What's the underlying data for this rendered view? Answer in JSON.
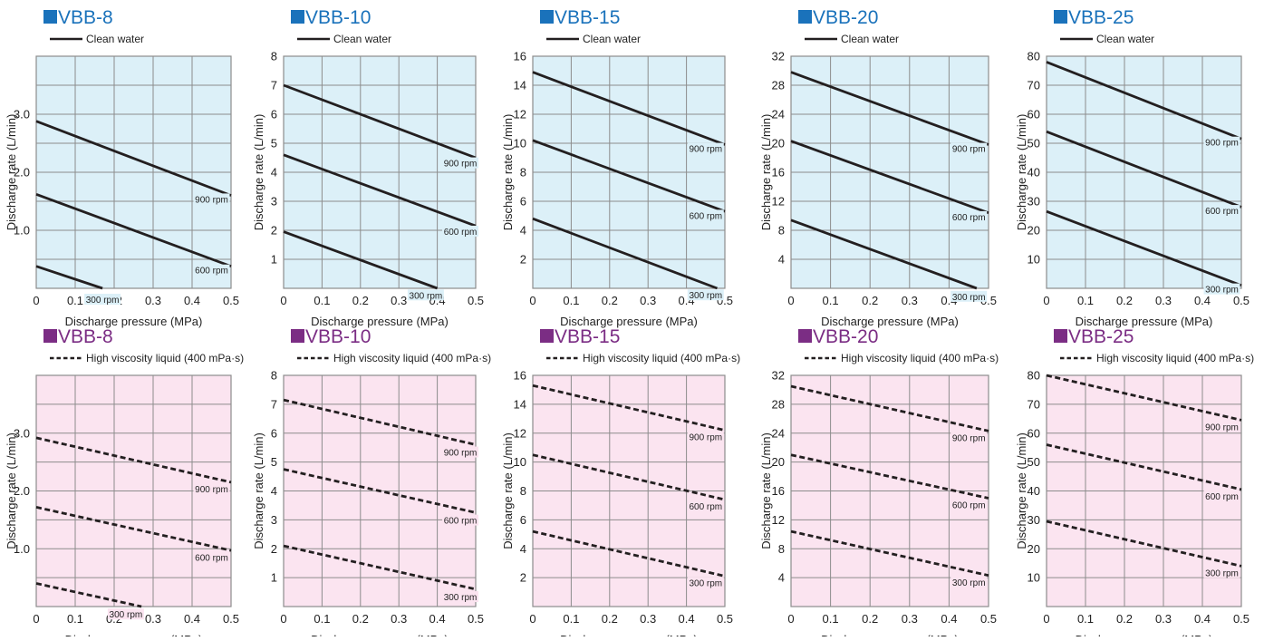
{
  "colors": {
    "water_bg": "#dcf0f8",
    "viscous_bg": "#fbe4f0",
    "water_title": "#1a72bb",
    "viscous_title": "#7b2d84",
    "grid": "#8c8c8c",
    "line": "#231f20"
  },
  "chart_data": [
    {
      "type": "line",
      "row": "water",
      "title": "VBB-8",
      "legend": "Clean water",
      "line_style": "solid",
      "xlabel": "Discharge pressure (MPa)",
      "ylabel": "Discharge rate (L/min)",
      "xlim": [
        0,
        0.5
      ],
      "ylim": [
        0,
        4
      ],
      "xticks": [
        "0",
        "0.1",
        "0.2",
        "0.3",
        "0.4",
        "0.5"
      ],
      "yticks": [
        {
          "v": 1,
          "t": "1.0"
        },
        {
          "v": 2,
          "t": "2.0"
        },
        {
          "v": 3,
          "t": "3.0"
        }
      ],
      "series": [
        {
          "name": "900 rpm",
          "x": [
            0,
            0.5
          ],
          "y": [
            2.88,
            1.6
          ],
          "label_x": 0.45
        },
        {
          "name": "600 rpm",
          "x": [
            0,
            0.5
          ],
          "y": [
            1.62,
            0.38
          ],
          "label_x": 0.45
        },
        {
          "name": "300 rpm",
          "x": [
            0,
            0.17
          ],
          "y": [
            0.38,
            0
          ],
          "label_x": 0.17
        }
      ]
    },
    {
      "type": "line",
      "row": "water",
      "title": "VBB-10",
      "legend": "Clean water",
      "line_style": "solid",
      "xlabel": "Discharge pressure (MPa)",
      "ylabel": "Discharge rate (L/min)",
      "xlim": [
        0,
        0.5
      ],
      "ylim": [
        0,
        8
      ],
      "xticks": [
        "0",
        "0.1",
        "0.2",
        "0.3",
        "0.4",
        "0.5"
      ],
      "yticks": [
        {
          "v": 1,
          "t": "1"
        },
        {
          "v": 2,
          "t": "2"
        },
        {
          "v": 3,
          "t": "3"
        },
        {
          "v": 4,
          "t": "4"
        },
        {
          "v": 5,
          "t": "5"
        },
        {
          "v": 6,
          "t": "6"
        },
        {
          "v": 7,
          "t": "7"
        },
        {
          "v": 8,
          "t": "8"
        }
      ],
      "series": [
        {
          "name": "900 rpm",
          "x": [
            0,
            0.5
          ],
          "y": [
            7.0,
            4.5
          ],
          "label_x": 0.46
        },
        {
          "name": "600 rpm",
          "x": [
            0,
            0.5
          ],
          "y": [
            4.6,
            2.15
          ],
          "label_x": 0.46
        },
        {
          "name": "300 rpm",
          "x": [
            0,
            0.4
          ],
          "y": [
            1.95,
            0
          ],
          "label_x": 0.37
        }
      ]
    },
    {
      "type": "line",
      "row": "water",
      "title": "VBB-15",
      "legend": "Clean water",
      "line_style": "solid",
      "xlabel": "Discharge pressure (MPa)",
      "ylabel": "Discharge rate (L/min)",
      "xlim": [
        0,
        0.5
      ],
      "ylim": [
        0,
        16
      ],
      "xticks": [
        "0",
        "0.1",
        "0.2",
        "0.3",
        "0.4",
        "0.5"
      ],
      "yticks": [
        {
          "v": 2,
          "t": "2"
        },
        {
          "v": 4,
          "t": "4"
        },
        {
          "v": 6,
          "t": "6"
        },
        {
          "v": 8,
          "t": "8"
        },
        {
          "v": 10,
          "t": "10"
        },
        {
          "v": 12,
          "t": "12"
        },
        {
          "v": 14,
          "t": "14"
        },
        {
          "v": 16,
          "t": "16"
        }
      ],
      "series": [
        {
          "name": "900 rpm",
          "x": [
            0,
            0.5
          ],
          "y": [
            14.9,
            9.9
          ],
          "label_x": 0.45
        },
        {
          "name": "600 rpm",
          "x": [
            0,
            0.5
          ],
          "y": [
            10.2,
            5.3
          ],
          "label_x": 0.45
        },
        {
          "name": "300 rpm",
          "x": [
            0,
            0.48
          ],
          "y": [
            4.8,
            0
          ],
          "label_x": 0.45
        }
      ]
    },
    {
      "type": "line",
      "row": "water",
      "title": "VBB-20",
      "legend": "Clean water",
      "line_style": "solid",
      "xlabel": "Discharge pressure (MPa)",
      "ylabel": "Discharge rate (L/min)",
      "xlim": [
        0,
        0.5
      ],
      "ylim": [
        0,
        32
      ],
      "xticks": [
        "0",
        "0.1",
        "0.2",
        "0.3",
        "0.4",
        "0.5"
      ],
      "yticks": [
        {
          "v": 4,
          "t": "4"
        },
        {
          "v": 8,
          "t": "8"
        },
        {
          "v": 12,
          "t": "12"
        },
        {
          "v": 16,
          "t": "16"
        },
        {
          "v": 20,
          "t": "20"
        },
        {
          "v": 24,
          "t": "24"
        },
        {
          "v": 28,
          "t": "28"
        },
        {
          "v": 32,
          "t": "32"
        }
      ],
      "series": [
        {
          "name": "900 rpm",
          "x": [
            0,
            0.5
          ],
          "y": [
            29.8,
            19.8
          ],
          "label_x": 0.45
        },
        {
          "name": "600 rpm",
          "x": [
            0,
            0.5
          ],
          "y": [
            20.3,
            10.4
          ],
          "label_x": 0.45
        },
        {
          "name": "300 rpm",
          "x": [
            0,
            0.47
          ],
          "y": [
            9.4,
            0
          ],
          "label_x": 0.45
        }
      ]
    },
    {
      "type": "line",
      "row": "water",
      "title": "VBB-25",
      "legend": "Clean water",
      "line_style": "solid",
      "xlabel": "Discharge pressure (MPa)",
      "ylabel": "Discharge rate (L/min)",
      "xlim": [
        0,
        0.5
      ],
      "ylim": [
        0,
        80
      ],
      "xticks": [
        "0",
        "0.1",
        "0.2",
        "0.3",
        "0.4",
        "0.5"
      ],
      "yticks": [
        {
          "v": 10,
          "t": "10"
        },
        {
          "v": 20,
          "t": "20"
        },
        {
          "v": 30,
          "t": "30"
        },
        {
          "v": 40,
          "t": "40"
        },
        {
          "v": 50,
          "t": "50"
        },
        {
          "v": 60,
          "t": "60"
        },
        {
          "v": 70,
          "t": "70"
        },
        {
          "v": 80,
          "t": "80"
        }
      ],
      "series": [
        {
          "name": "900 rpm",
          "x": [
            0,
            0.5
          ],
          "y": [
            78,
            51.5
          ],
          "label_x": 0.45
        },
        {
          "name": "600 rpm",
          "x": [
            0,
            0.5
          ],
          "y": [
            54,
            28
          ],
          "label_x": 0.45
        },
        {
          "name": "300 rpm",
          "x": [
            0,
            0.5
          ],
          "y": [
            26.5,
            1
          ],
          "label_x": 0.45
        }
      ]
    },
    {
      "type": "line",
      "row": "viscous",
      "title": "VBB-8",
      "legend": "High viscosity liquid (400 mPa·s)",
      "line_style": "dashed",
      "xlabel": "Discharge pressure (MPa)",
      "ylabel": "Discharge rate (L/min)",
      "xlim": [
        0,
        0.5
      ],
      "ylim": [
        0,
        4
      ],
      "xticks": [
        "0",
        "0.1",
        "0.2",
        "0.3",
        "0.4",
        "0.5"
      ],
      "yticks": [
        {
          "v": 1,
          "t": "1.0"
        },
        {
          "v": 2,
          "t": "2.0"
        },
        {
          "v": 3,
          "t": "3.0"
        }
      ],
      "series": [
        {
          "name": "900 rpm",
          "x": [
            0,
            0.5
          ],
          "y": [
            2.92,
            2.15
          ],
          "label_x": 0.45
        },
        {
          "name": "600 rpm",
          "x": [
            0,
            0.5
          ],
          "y": [
            1.72,
            0.97
          ],
          "label_x": 0.45
        },
        {
          "name": "300 rpm",
          "x": [
            0,
            0.27
          ],
          "y": [
            0.4,
            0
          ],
          "label_x": 0.23
        }
      ]
    },
    {
      "type": "line",
      "row": "viscous",
      "title": "VBB-10",
      "legend": "High viscosity liquid (400 mPa·s)",
      "line_style": "dashed",
      "xlabel": "Discharge pressure (MPa)",
      "ylabel": "Discharge rate (L/min)",
      "xlim": [
        0,
        0.5
      ],
      "ylim": [
        0,
        8
      ],
      "xticks": [
        "0",
        "0.1",
        "0.2",
        "0.3",
        "0.4",
        "0.5"
      ],
      "yticks": [
        {
          "v": 1,
          "t": "1"
        },
        {
          "v": 2,
          "t": "2"
        },
        {
          "v": 3,
          "t": "3"
        },
        {
          "v": 4,
          "t": "4"
        },
        {
          "v": 5,
          "t": "5"
        },
        {
          "v": 6,
          "t": "6"
        },
        {
          "v": 7,
          "t": "7"
        },
        {
          "v": 8,
          "t": "8"
        }
      ],
      "series": [
        {
          "name": "900 rpm",
          "x": [
            0,
            0.5
          ],
          "y": [
            7.15,
            5.6
          ],
          "label_x": 0.46
        },
        {
          "name": "600 rpm",
          "x": [
            0,
            0.5
          ],
          "y": [
            4.75,
            3.25
          ],
          "label_x": 0.46
        },
        {
          "name": "300 rpm",
          "x": [
            0,
            0.5
          ],
          "y": [
            2.1,
            0.6
          ],
          "label_x": 0.46
        }
      ]
    },
    {
      "type": "line",
      "row": "viscous",
      "title": "VBB-15",
      "legend": "High viscosity liquid (400 mPa·s)",
      "line_style": "dashed",
      "xlabel": "Discharge pressure (MPa)",
      "ylabel": "Discharge rate (L/min)",
      "xlim": [
        0,
        0.5
      ],
      "ylim": [
        0,
        16
      ],
      "xticks": [
        "0",
        "0.1",
        "0.2",
        "0.3",
        "0.4",
        "0.5"
      ],
      "yticks": [
        {
          "v": 2,
          "t": "2"
        },
        {
          "v": 4,
          "t": "4"
        },
        {
          "v": 6,
          "t": "6"
        },
        {
          "v": 8,
          "t": "8"
        },
        {
          "v": 10,
          "t": "10"
        },
        {
          "v": 12,
          "t": "12"
        },
        {
          "v": 14,
          "t": "14"
        },
        {
          "v": 16,
          "t": "16"
        }
      ],
      "series": [
        {
          "name": "900 rpm",
          "x": [
            0,
            0.5
          ],
          "y": [
            15.3,
            12.2
          ],
          "label_x": 0.45
        },
        {
          "name": "600 rpm",
          "x": [
            0,
            0.5
          ],
          "y": [
            10.5,
            7.4
          ],
          "label_x": 0.45
        },
        {
          "name": "300 rpm",
          "x": [
            0,
            0.5
          ],
          "y": [
            5.2,
            2.1
          ],
          "label_x": 0.45
        }
      ]
    },
    {
      "type": "line",
      "row": "viscous",
      "title": "VBB-20",
      "legend": "High viscosity liquid (400 mPa·s)",
      "line_style": "dashed",
      "xlabel": "Discharge pressure (MPa)",
      "ylabel": "Discharge rate (L/min)",
      "xlim": [
        0,
        0.5
      ],
      "ylim": [
        0,
        32
      ],
      "xticks": [
        "0",
        "0.1",
        "0.2",
        "0.3",
        "0.4",
        "0.5"
      ],
      "yticks": [
        {
          "v": 4,
          "t": "4"
        },
        {
          "v": 8,
          "t": "8"
        },
        {
          "v": 12,
          "t": "12"
        },
        {
          "v": 16,
          "t": "16"
        },
        {
          "v": 20,
          "t": "20"
        },
        {
          "v": 24,
          "t": "24"
        },
        {
          "v": 28,
          "t": "28"
        },
        {
          "v": 32,
          "t": "32"
        }
      ],
      "series": [
        {
          "name": "900 rpm",
          "x": [
            0,
            0.5
          ],
          "y": [
            30.5,
            24.3
          ],
          "label_x": 0.45
        },
        {
          "name": "600 rpm",
          "x": [
            0,
            0.5
          ],
          "y": [
            21,
            15
          ],
          "label_x": 0.45
        },
        {
          "name": "300 rpm",
          "x": [
            0,
            0.5
          ],
          "y": [
            10.4,
            4.3
          ],
          "label_x": 0.45
        }
      ]
    },
    {
      "type": "line",
      "row": "viscous",
      "title": "VBB-25",
      "legend": "High viscosity liquid (400 mPa·s)",
      "line_style": "dashed",
      "xlabel": "Discharge pressure (MPa)",
      "ylabel": "Discharge rate (L/min)",
      "xlim": [
        0,
        0.5
      ],
      "ylim": [
        0,
        80
      ],
      "xticks": [
        "0",
        "0.1",
        "0.2",
        "0.3",
        "0.4",
        "0.5"
      ],
      "yticks": [
        {
          "v": 10,
          "t": "10"
        },
        {
          "v": 20,
          "t": "20"
        },
        {
          "v": 30,
          "t": "30"
        },
        {
          "v": 40,
          "t": "40"
        },
        {
          "v": 50,
          "t": "50"
        },
        {
          "v": 60,
          "t": "60"
        },
        {
          "v": 70,
          "t": "70"
        },
        {
          "v": 80,
          "t": "80"
        }
      ],
      "series": [
        {
          "name": "900 rpm",
          "x": [
            0,
            0.5
          ],
          "y": [
            80,
            64.5
          ],
          "label_x": 0.45
        },
        {
          "name": "600 rpm",
          "x": [
            0,
            0.5
          ],
          "y": [
            56,
            40.5
          ],
          "label_x": 0.45
        },
        {
          "name": "300 rpm",
          "x": [
            0,
            0.5
          ],
          "y": [
            29.5,
            14
          ],
          "label_x": 0.45
        }
      ]
    }
  ]
}
